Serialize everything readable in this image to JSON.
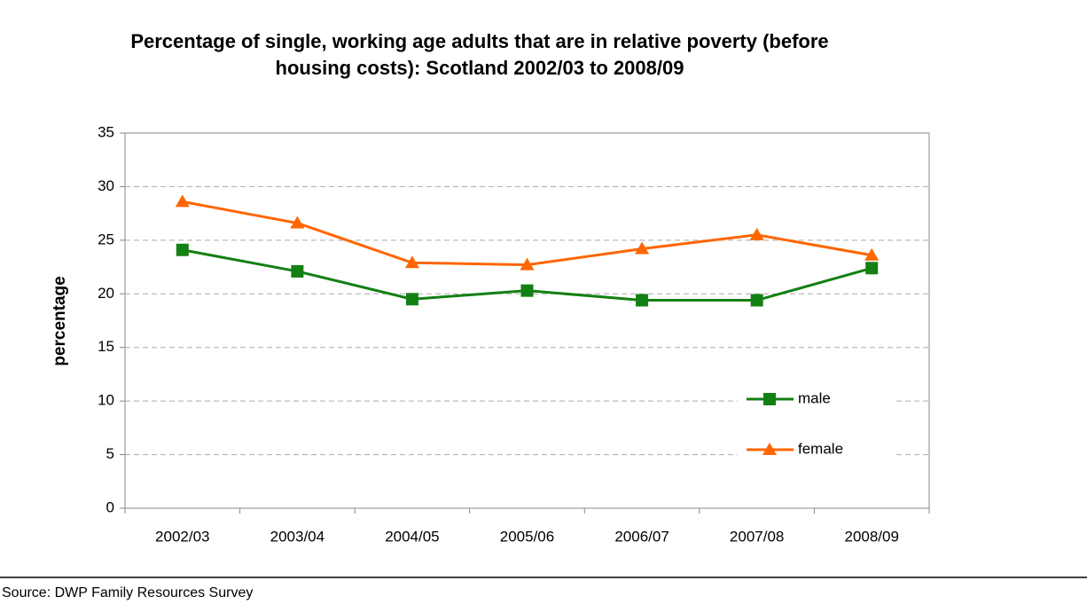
{
  "chart_data": {
    "type": "line",
    "title": "Percentage of single, working age adults that are in relative poverty (before housing costs): Scotland 2002/03 to 2008/09",
    "y_label": "percentage",
    "categories": [
      "2002/03",
      "2003/04",
      "2004/05",
      "2005/06",
      "2006/07",
      "2007/08",
      "2008/09"
    ],
    "series": [
      {
        "name": "male",
        "color": "#138013",
        "marker": "square",
        "values": [
          24.1,
          22.1,
          19.5,
          20.3,
          19.4,
          19.4,
          22.4
        ]
      },
      {
        "name": "female",
        "color": "#ff6600",
        "marker": "triangle",
        "values": [
          28.6,
          26.6,
          22.9,
          22.7,
          24.2,
          25.5,
          23.6
        ]
      }
    ],
    "ylim": [
      0,
      35
    ],
    "yticks": [
      0,
      5,
      10,
      15,
      20,
      25,
      30,
      35
    ],
    "grid": true,
    "legend": "lower right"
  },
  "source": "Source: DWP Family Resources Survey"
}
